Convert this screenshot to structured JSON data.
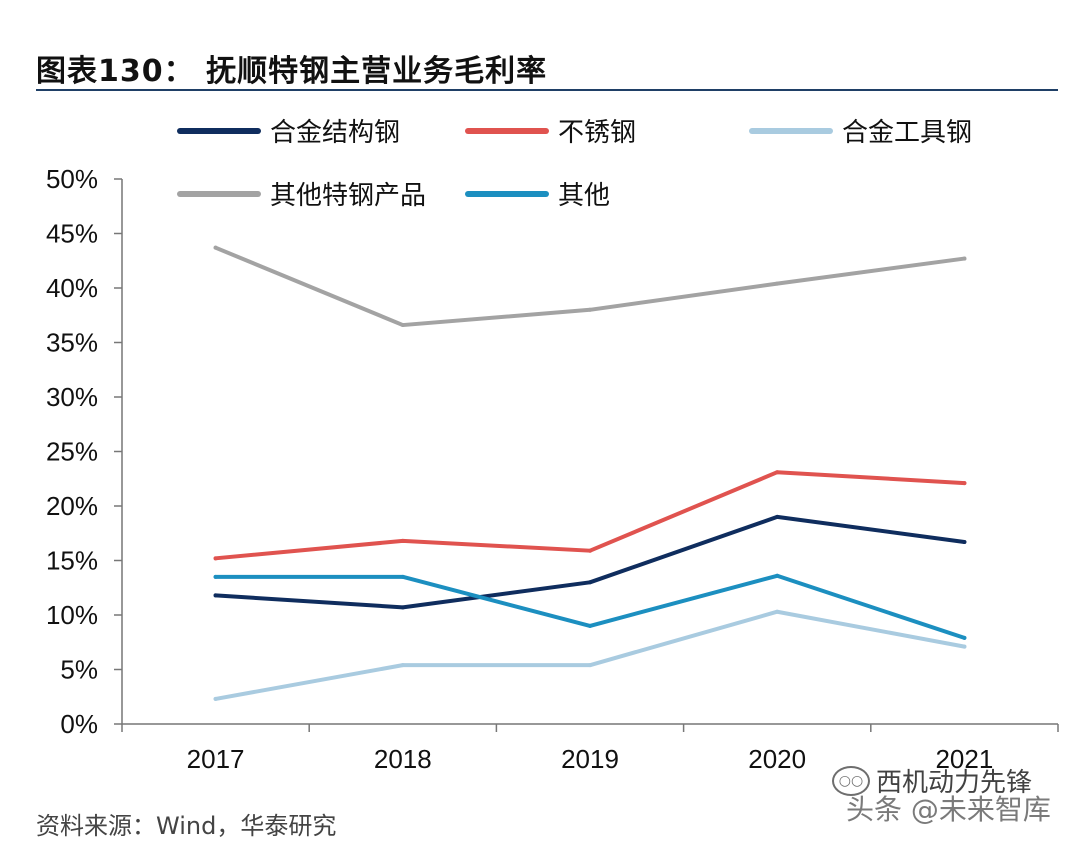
{
  "title": "图表130：  抚顺特钢主营业务毛利率",
  "source": "资料来源：Wind，华泰研究",
  "watermark": "西机动力先锋",
  "watermark2": "头条 @未来智库",
  "chart_data": {
    "type": "line",
    "x": [
      "2017",
      "2018",
      "2019",
      "2020",
      "2021"
    ],
    "ylim": [
      0,
      50
    ],
    "yticks": [
      "0%",
      "5%",
      "10%",
      "15%",
      "20%",
      "25%",
      "30%",
      "35%",
      "40%",
      "45%",
      "50%"
    ],
    "grid": false,
    "legend_position": "top",
    "series": [
      {
        "name": "合金结构钢",
        "color": "#0f2d5e",
        "values": [
          11.8,
          10.7,
          13.0,
          19.0,
          16.7
        ]
      },
      {
        "name": "不锈钢",
        "color": "#e0534f",
        "values": [
          15.2,
          16.8,
          15.9,
          23.1,
          22.1
        ]
      },
      {
        "name": "合金工具钢",
        "color": "#a9cbe0",
        "values": [
          2.3,
          5.4,
          5.4,
          10.3,
          7.1
        ]
      },
      {
        "name": "其他特钢产品",
        "color": "#a3a3a3",
        "values": [
          43.7,
          36.6,
          38.0,
          40.4,
          42.7
        ]
      },
      {
        "name": "其他",
        "color": "#1c8fc0",
        "values": [
          13.5,
          13.5,
          9.0,
          13.6,
          7.9
        ]
      }
    ]
  }
}
